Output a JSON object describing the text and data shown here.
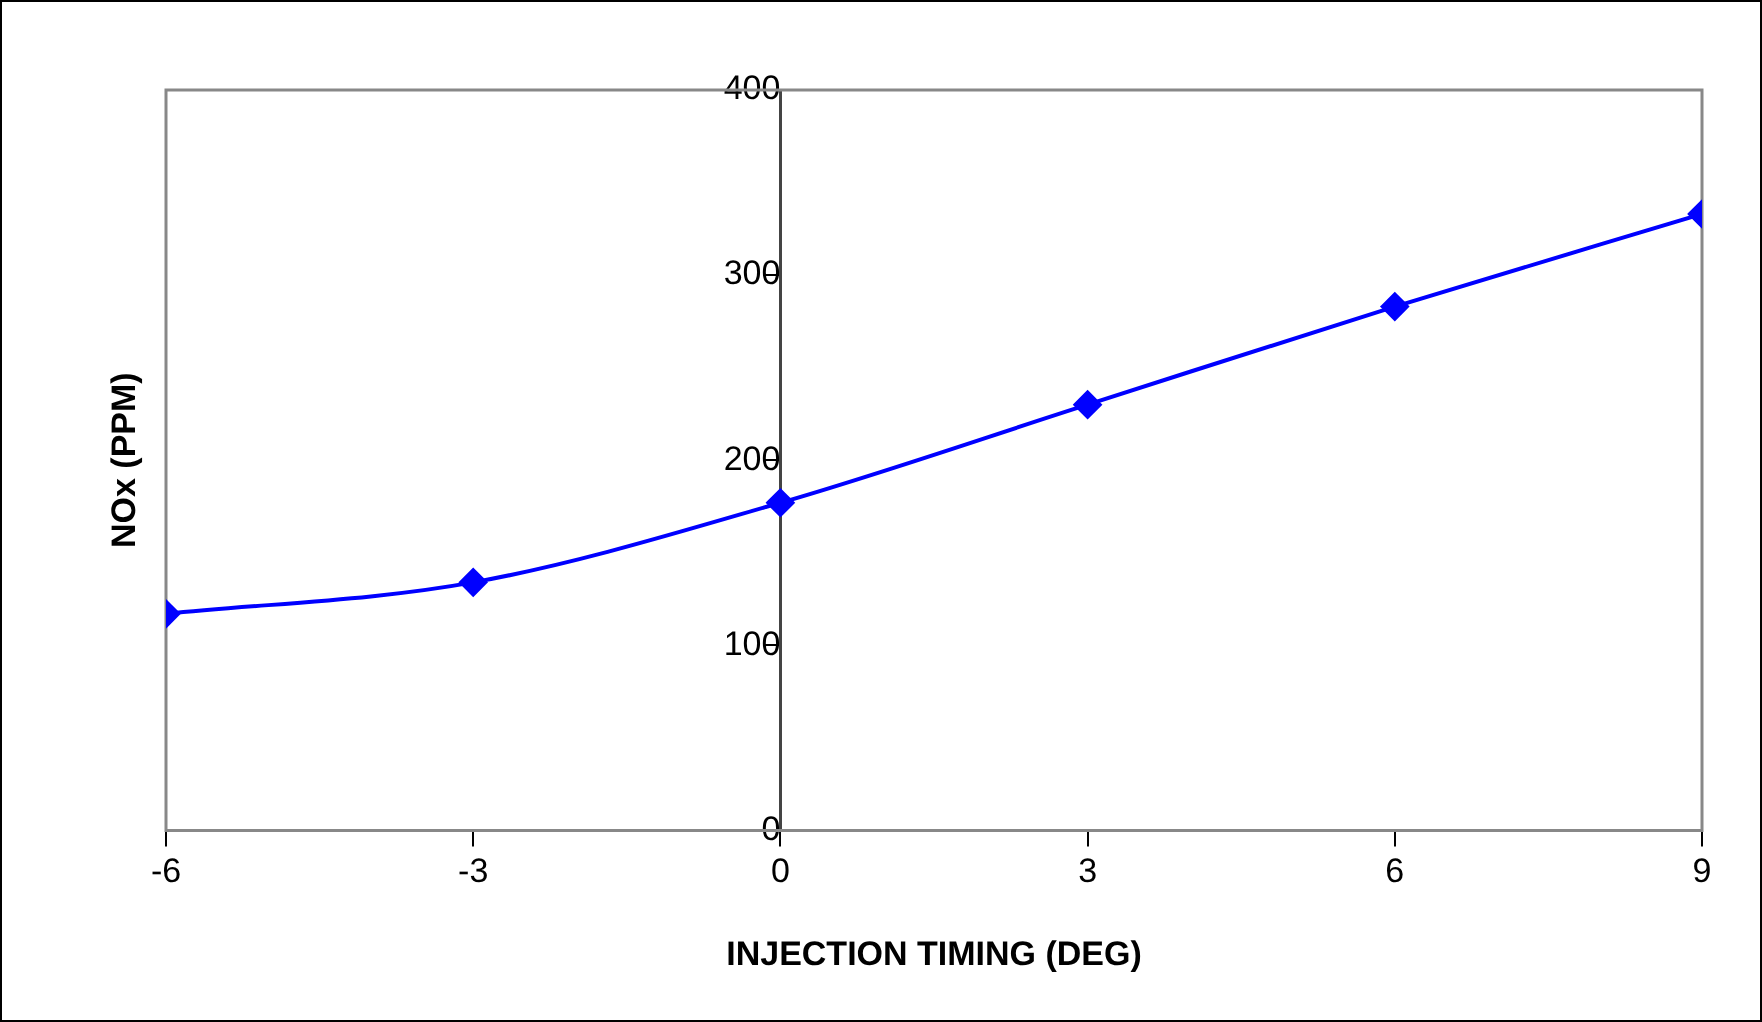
{
  "chart_data": {
    "type": "line",
    "xlabel": "INJECTION TIMING (DEG)",
    "ylabel": "NOx (PPM)",
    "x": [
      -6,
      -3,
      0,
      3,
      6,
      9
    ],
    "series": [
      {
        "color": "#0000ff",
        "values": [
          117,
          134,
          177,
          230,
          283,
          333
        ]
      }
    ],
    "xlim": [
      -6,
      9
    ],
    "xticks": [
      -6,
      -3,
      0,
      3,
      6,
      9
    ],
    "ylim": [
      0,
      400
    ],
    "yticks": [
      0,
      100,
      200,
      300,
      400
    ],
    "grid": false,
    "legend": false,
    "marker": "diamond",
    "line_style": "solid"
  }
}
